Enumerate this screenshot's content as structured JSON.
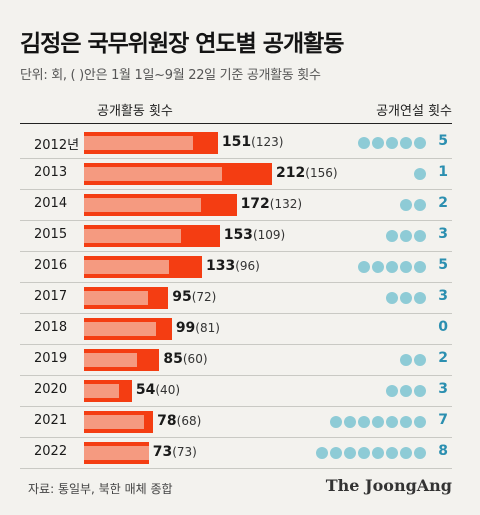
{
  "title": "김정은 국무위원장 연도별 공개활동",
  "subtitle": "단위: 회, ( )안은 1월 1일~9월 22일 기준 공개활동 횟수",
  "col_left": "공개활동 횟수",
  "col_right": "공개연설 횟수",
  "source": "자료: 통일부, 북한 매체 종합",
  "brand": "The JoongAng",
  "colors": {
    "bar_total": "#f43d12",
    "bar_partial": "#f59a80",
    "dot": "#8ecbd6",
    "speech_num": "#2b8fb0"
  },
  "chart_data": {
    "type": "bar",
    "title": "김정은 국무위원장 연도별 공개활동",
    "categories": [
      "2012년",
      "2013",
      "2014",
      "2015",
      "2016",
      "2017",
      "2018",
      "2019",
      "2020",
      "2021",
      "2022"
    ],
    "series": [
      {
        "name": "공개활동 횟수",
        "values": [
          151,
          212,
          172,
          153,
          133,
          95,
          99,
          85,
          54,
          78,
          73
        ]
      },
      {
        "values": [
          123,
          156,
          132,
          109,
          96,
          72,
          81,
          60,
          40,
          68,
          73
        ]
      },
      {
        "name": "공개연설 횟수",
        "values": [
          5,
          1,
          2,
          3,
          5,
          3,
          0,
          2,
          3,
          7,
          8
        ]
      }
    ]
  }
}
